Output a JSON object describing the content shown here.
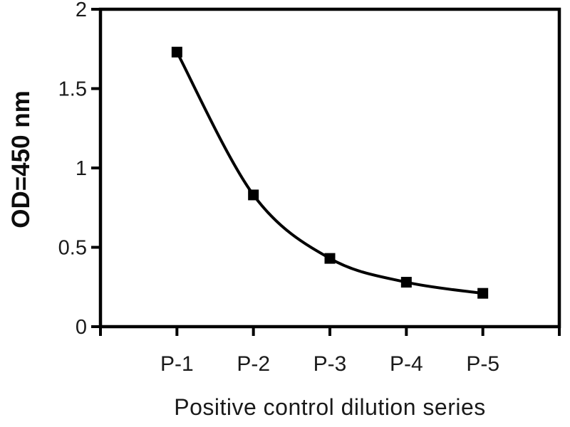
{
  "chart_data": {
    "type": "line",
    "categories": [
      "P-1",
      "P-2",
      "P-3",
      "P-4",
      "P-5"
    ],
    "values": [
      1.73,
      0.83,
      0.43,
      0.28,
      0.21
    ],
    "title": "",
    "xlabel": "Positive control dilution series",
    "ylabel": "OD=450 nm",
    "ylim": [
      0,
      2
    ],
    "y_ticks": [
      0,
      0.5,
      1,
      1.5,
      2
    ],
    "y_tick_labels": [
      "0",
      "0.5",
      "1",
      "1.5",
      "2"
    ],
    "grid": false,
    "legend": false,
    "smooth": true,
    "marker": "filled-square",
    "line_color": "#000000",
    "marker_color": "#000000",
    "frame_color": "#000000",
    "text_color": "#1a1a1a"
  }
}
